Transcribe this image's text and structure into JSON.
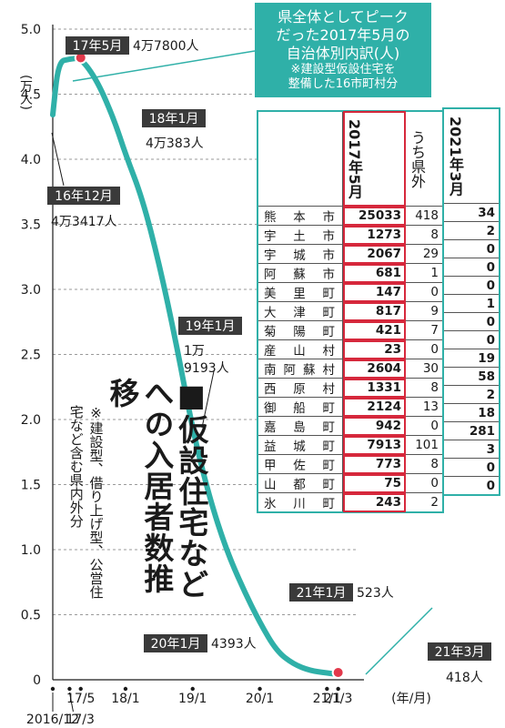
{
  "chart_data": {
    "type": "line",
    "title": "■仮設住宅などへの入居者数推移",
    "note": "※建設型、借り上げ型、公営住宅など含む県内外分",
    "ylabel": "(万人)",
    "xunit": "(年/月)",
    "ylim": [
      0,
      5.0
    ],
    "yticks": [
      "0",
      "0.5",
      "1.0",
      "1.5",
      "2.0",
      "2.5",
      "3.0",
      "3.5",
      "4.0",
      "4.5",
      "5.0"
    ],
    "xticks": [
      {
        "date": "2016-12",
        "label": "2016/12"
      },
      {
        "date": "2017-03",
        "label": "17/3"
      },
      {
        "date": "2017-05",
        "label": "17/5"
      },
      {
        "date": "2018-01",
        "label": "18/1"
      },
      {
        "date": "2019-01",
        "label": "19/1"
      },
      {
        "date": "2020-01",
        "label": "20/1"
      },
      {
        "date": "2021-01",
        "label": "21/1"
      },
      {
        "date": "2021-03",
        "label": "21/3"
      }
    ],
    "series": [
      {
        "points": [
          {
            "date": "2016-12",
            "value": 4.3417
          },
          {
            "date": "2017-01",
            "value": 4.75
          },
          {
            "date": "2017-03",
            "value": 4.77
          },
          {
            "date": "2017-05",
            "value": 4.78
          },
          {
            "date": "2017-08",
            "value": 4.6
          },
          {
            "date": "2017-11",
            "value": 4.3
          },
          {
            "date": "2018-01",
            "value": 4.0383
          },
          {
            "date": "2018-04",
            "value": 3.7
          },
          {
            "date": "2018-07",
            "value": 3.2
          },
          {
            "date": "2018-10",
            "value": 2.6
          },
          {
            "date": "2019-01",
            "value": 1.9193
          },
          {
            "date": "2019-04",
            "value": 1.4
          },
          {
            "date": "2019-07",
            "value": 1.0
          },
          {
            "date": "2019-10",
            "value": 0.7
          },
          {
            "date": "2020-01",
            "value": 0.4393
          },
          {
            "date": "2020-04",
            "value": 0.22
          },
          {
            "date": "2020-07",
            "value": 0.12
          },
          {
            "date": "2020-10",
            "value": 0.07
          },
          {
            "date": "2021-01",
            "value": 0.0523
          },
          {
            "date": "2021-03",
            "value": 0.0418
          }
        ]
      }
    ],
    "annotations": [
      {
        "tag": "17年5月",
        "text": "4万7800人"
      },
      {
        "tag": "18年1月",
        "text": "4万383人"
      },
      {
        "tag": "16年12月",
        "text": "4万3417人"
      },
      {
        "tag": "19年1月",
        "text": "1万9193人"
      },
      {
        "tag": "20年1月",
        "text": "4393人"
      },
      {
        "tag": "21年1月",
        "text": "523人"
      },
      {
        "tag": "21年3月",
        "text": "418人"
      }
    ]
  },
  "callout": {
    "lines": [
      "県全体としてピーク",
      "だった2017年5月の",
      "自治体別内訳(人)"
    ],
    "note_lines": [
      "※建設型仮設住宅を",
      "整備した16市町村分"
    ]
  },
  "table": {
    "headers": {
      "y2017": "2017年5月",
      "outside": "うち県外",
      "y2021": "2021年3月"
    },
    "rows": [
      {
        "name": "熊本市",
        "y2017": "25033",
        "outside": "418",
        "y2021": "34"
      },
      {
        "name": "宇土市",
        "y2017": "1273",
        "outside": "8",
        "y2021": "2"
      },
      {
        "name": "宇城市",
        "y2017": "2067",
        "outside": "29",
        "y2021": "0"
      },
      {
        "name": "阿蘇市",
        "y2017": "681",
        "outside": "1",
        "y2021": "0"
      },
      {
        "name": "美里町",
        "y2017": "147",
        "outside": "0",
        "y2021": "0"
      },
      {
        "name": "大津町",
        "y2017": "817",
        "outside": "9",
        "y2021": "1"
      },
      {
        "name": "菊陽町",
        "y2017": "421",
        "outside": "7",
        "y2021": "0"
      },
      {
        "name": "産山村",
        "y2017": "23",
        "outside": "0",
        "y2021": "0"
      },
      {
        "name": "南阿蘇村",
        "y2017": "2604",
        "outside": "30",
        "y2021": "19"
      },
      {
        "name": "西原村",
        "y2017": "1331",
        "outside": "8",
        "y2021": "58"
      },
      {
        "name": "御船町",
        "y2017": "2124",
        "outside": "13",
        "y2021": "2"
      },
      {
        "name": "嘉島町",
        "y2017": "942",
        "outside": "0",
        "y2021": "18"
      },
      {
        "name": "益城町",
        "y2017": "7913",
        "outside": "101",
        "y2021": "281"
      },
      {
        "name": "甲佐町",
        "y2017": "773",
        "outside": "8",
        "y2021": "3"
      },
      {
        "name": "山都町",
        "y2017": "75",
        "outside": "0",
        "y2021": "0"
      },
      {
        "name": "氷川町",
        "y2017": "243",
        "outside": "2",
        "y2021": "0"
      }
    ]
  },
  "colors": {
    "line": "#2fb0a8",
    "marker": "#e2394b",
    "callout": "#2fb0a8",
    "tag": "#3a3a3a",
    "highlight": "#d6283c"
  }
}
